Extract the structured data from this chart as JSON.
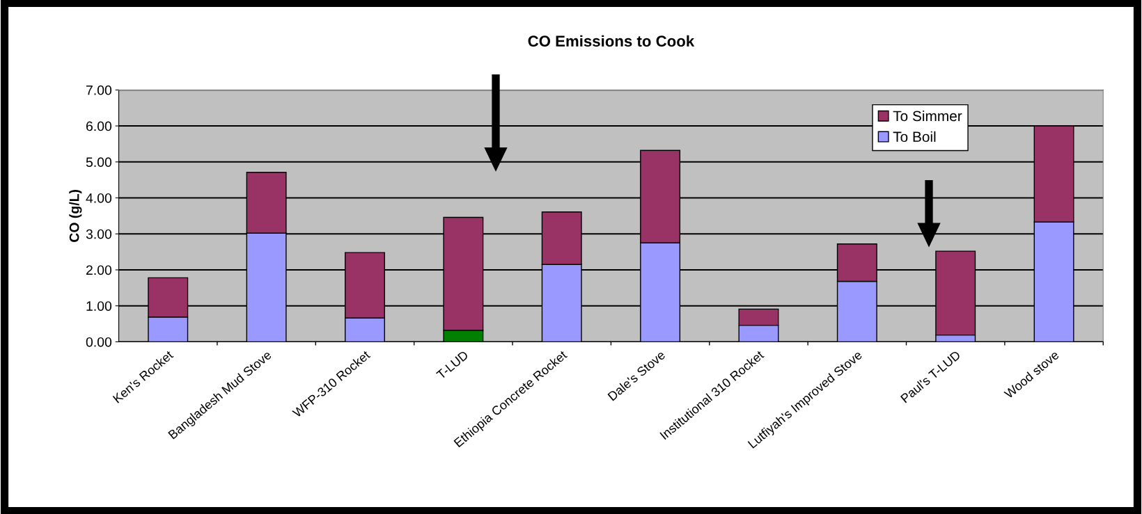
{
  "chart_data": {
    "type": "bar",
    "title": "CO Emissions to Cook",
    "ylabel": "CO (g/L)",
    "stacked": true,
    "categories": [
      "Ken's Rocket",
      "Bangladesh Mud Stove",
      "WFP-310 Rocket",
      "T-LUD",
      "Ethiopia Concrete Rocket",
      "Dale's Stove",
      "Institutional 310 Rocket",
      "Lutfiyah's Improved Stove",
      "Paul's T-LUD",
      "Wood stove"
    ],
    "series": [
      {
        "name": "To Boil",
        "color": "#9999ff",
        "colors": [
          "#9999ff",
          "#9999ff",
          "#9999ff",
          "#008000",
          "#9999ff",
          "#9999ff",
          "#9999ff",
          "#9999ff",
          "#9999ff",
          "#9999ff"
        ],
        "values": [
          0.69,
          3.02,
          0.66,
          0.32,
          2.15,
          2.75,
          0.46,
          1.68,
          0.19,
          3.33
        ]
      },
      {
        "name": "To Simmer",
        "color": "#993366",
        "values": [
          1.09,
          1.69,
          1.82,
          3.14,
          1.46,
          2.57,
          0.45,
          1.04,
          2.33,
          2.67
        ]
      }
    ],
    "ylim": [
      0,
      7
    ],
    "yticks": [
      {
        "value": 0,
        "label": "0.00"
      },
      {
        "value": 1,
        "label": "1.00"
      },
      {
        "value": 2,
        "label": "2.00"
      },
      {
        "value": 3,
        "label": "3.00"
      },
      {
        "value": 4,
        "label": "4.00"
      },
      {
        "value": 5,
        "label": "5.00"
      },
      {
        "value": 6,
        "label": "6.00"
      },
      {
        "value": 7,
        "label": "7.00"
      }
    ],
    "grid": "y",
    "legend": "top right"
  }
}
